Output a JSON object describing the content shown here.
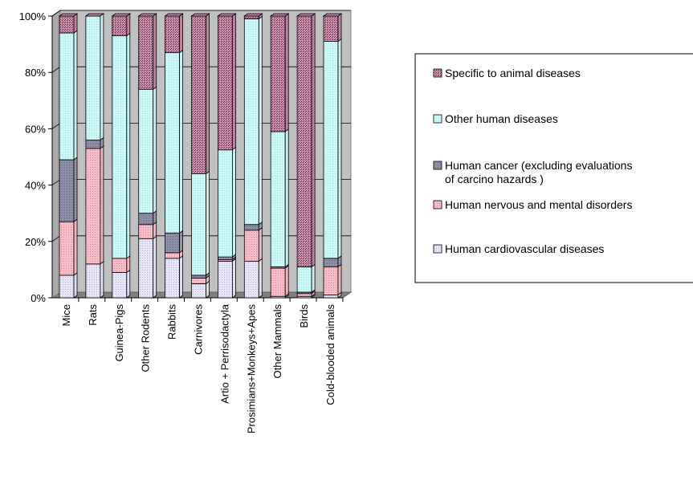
{
  "chart_data": {
    "type": "bar",
    "stacked": "percent",
    "categories": [
      "Mice",
      "Rats",
      "Guinea-Pigs",
      "Other Rodents",
      "Rabbits",
      "Carnivores",
      "Artio + Perrisodactyla",
      "Prosimians+Monkeys+Apes",
      "Other Mammals",
      "Birds",
      "Cold-blooded animals"
    ],
    "ylim": [
      0,
      100
    ],
    "y_ticks": [
      "0%",
      "20%",
      "40%",
      "60%",
      "80%",
      "100%"
    ],
    "grid": true,
    "legend_position": "right",
    "series": [
      {
        "name": "Human cardiovascular diseases",
        "color": "#e6e6f8",
        "values": [
          8,
          12,
          9,
          21,
          14,
          5,
          13,
          13,
          0.5,
          0.5,
          1
        ]
      },
      {
        "name": "Human nervous and mental disorders",
        "color": "#f4b6c2",
        "values": [
          19,
          41,
          5,
          5,
          2,
          2,
          0.5,
          11,
          10,
          1,
          10
        ]
      },
      {
        "name": "Human cancer (excluding evaluations of carcino hazards )",
        "color": "#8c8c9c",
        "values": [
          22,
          3,
          0,
          4,
          7,
          1,
          1,
          2,
          0.5,
          0.5,
          3
        ]
      },
      {
        "name": "Other human diseases",
        "color": "#ccf8f8",
        "values": [
          45,
          44,
          79,
          44,
          64,
          36,
          38,
          73,
          48,
          9,
          77
        ]
      },
      {
        "name": "Specific to animal diseases",
        "color": "#bc7898",
        "values": [
          6,
          0,
          7,
          26,
          13,
          56,
          47.5,
          1,
          41,
          89,
          9
        ]
      }
    ],
    "legend_order": [
      4,
      3,
      2,
      1,
      0
    ]
  }
}
